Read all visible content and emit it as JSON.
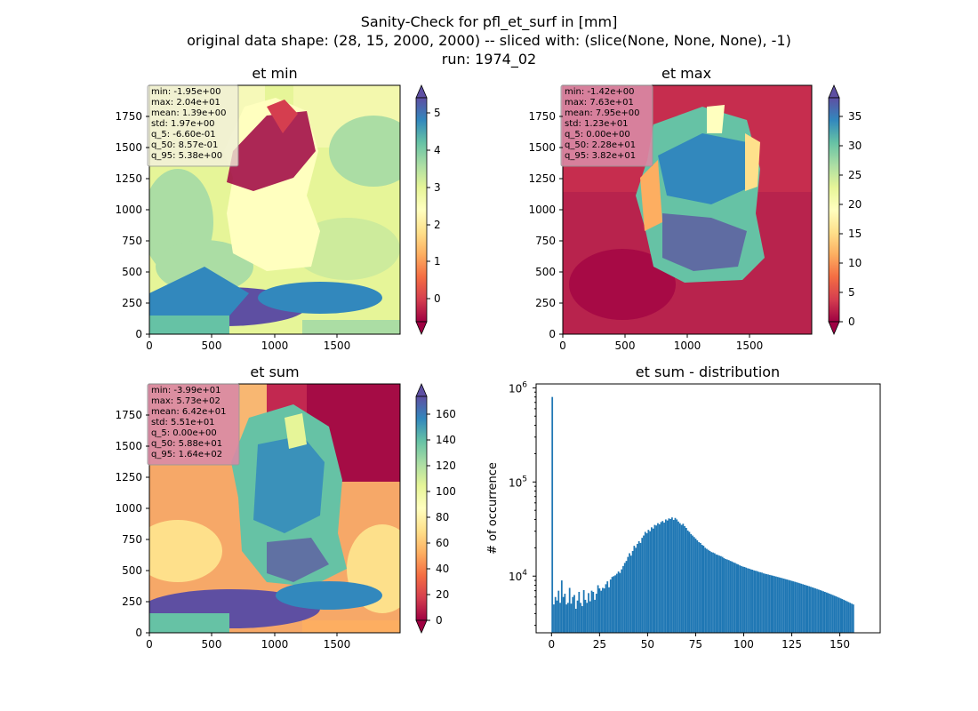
{
  "figure": {
    "title_line1": "Sanity-Check for pfl_et_surf in [mm]",
    "title_line2": "original data shape: (28, 15, 2000, 2000) -- sliced with: (slice(None, None, None), -1)",
    "title_line3": "run: 1974_02"
  },
  "colors": {
    "colormap": "Spectral",
    "spectral_stops": [
      "#9e0142",
      "#d53e4f",
      "#f46d43",
      "#fdae61",
      "#fee08b",
      "#ffffbf",
      "#e6f598",
      "#abdda4",
      "#66c2a5",
      "#3288bd",
      "#5e4fa2"
    ],
    "histogram_bar": "#1f77b4",
    "stats_box_bg": "#e8b4c4"
  },
  "chart_data": [
    {
      "type": "heatmap",
      "title": "et min",
      "xlabel": "",
      "ylabel": "",
      "xlim": [
        0,
        2000
      ],
      "ylim": [
        0,
        2000
      ],
      "xticks": [
        "0",
        "500",
        "1000",
        "1500"
      ],
      "yticks": [
        "0",
        "250",
        "500",
        "750",
        "1000",
        "1250",
        "1500",
        "1750"
      ],
      "colorbar": {
        "range": [
          -0.66,
          5.38
        ],
        "ticks": [
          "0",
          "1",
          "2",
          "3",
          "4",
          "5"
        ],
        "extend": "both"
      },
      "stats": [
        "min: -1.95e+00",
        "max: 2.04e+01",
        "mean: 1.39e+00",
        "std: 1.97e+00",
        "q_5: -6.60e-01",
        "q_50: 8.57e-01",
        "q_95: 5.38e+00"
      ],
      "stats_box_color": "#f0f0d8"
    },
    {
      "type": "heatmap",
      "title": "et max",
      "xlabel": "",
      "ylabel": "",
      "xlim": [
        0,
        2000
      ],
      "ylim": [
        0,
        2000
      ],
      "xticks": [
        "0",
        "500",
        "1000",
        "1500"
      ],
      "yticks": [
        "0",
        "250",
        "500",
        "750",
        "1000",
        "1250",
        "1500",
        "1750"
      ],
      "colorbar": {
        "range": [
          0,
          38.2
        ],
        "ticks": [
          "0",
          "5",
          "10",
          "15",
          "20",
          "25",
          "30",
          "35"
        ],
        "extend": "both"
      },
      "stats": [
        "min: -1.42e+00",
        "max: 7.63e+01",
        "mean: 7.95e+00",
        "std: 1.23e+01",
        "q_5: 0.00e+00",
        "q_50: 2.28e+01",
        "q_95: 3.82e+01"
      ],
      "stats_box_color": "#d98aa5"
    },
    {
      "type": "heatmap",
      "title": "et sum",
      "xlabel": "",
      "ylabel": "",
      "xlim": [
        0,
        2000
      ],
      "ylim": [
        0,
        2000
      ],
      "xticks": [
        "0",
        "500",
        "1000",
        "1500"
      ],
      "yticks": [
        "0",
        "250",
        "500",
        "750",
        "1000",
        "1250",
        "1500",
        "1750"
      ],
      "colorbar": {
        "range": [
          0,
          164
        ],
        "ticks": [
          "0",
          "20",
          "40",
          "60",
          "80",
          "100",
          "120",
          "140",
          "160"
        ],
        "extend": "both"
      },
      "stats": [
        "min: -3.99e+01",
        "max: 5.73e+02",
        "mean: 6.42e+01",
        "std: 5.51e+01",
        "q_5: 0.00e+00",
        "q_50: 5.88e+01",
        "q_95: 1.64e+02"
      ],
      "stats_box_color": "#d98aa5"
    },
    {
      "type": "bar",
      "title": "et sum - distribution",
      "xlabel": "",
      "ylabel": "# of occurrence",
      "xlim": [
        -8,
        171
      ],
      "yscale": "log",
      "ylim": [
        2500,
        1100000
      ],
      "xticks": [
        0,
        25,
        50,
        75,
        100,
        125,
        150
      ],
      "yticks": [
        {
          "value": 10000,
          "base": "10",
          "exp": "4"
        },
        {
          "value": 100000,
          "base": "10",
          "exp": "5"
        },
        {
          "value": 1000000,
          "base": "10",
          "exp": "6"
        }
      ],
      "bins": {
        "start": 0,
        "width": 0.82
      },
      "values": [
        800000,
        5000,
        6000,
        5500,
        7000,
        5200,
        9000,
        6000,
        6500,
        5000,
        5200,
        7500,
        5100,
        6000,
        6300,
        4500,
        5500,
        6800,
        5200,
        4800,
        7100,
        5600,
        5200,
        6600,
        5400,
        7000,
        6800,
        5600,
        6500,
        8000,
        7400,
        7000,
        7500,
        7400,
        8200,
        8800,
        7600,
        9200,
        9800,
        10000,
        10200,
        10600,
        11200,
        10800,
        11800,
        12800,
        13800,
        14500,
        16000,
        17500,
        16500,
        18500,
        21000,
        20000,
        22000,
        23500,
        22500,
        25500,
        27000,
        29500,
        28500,
        31000,
        30000,
        33000,
        32000,
        35000,
        34500,
        36500,
        35500,
        37500,
        38500,
        37000,
        40000,
        39000,
        41000,
        40500,
        42000,
        39500,
        41500,
        40000,
        38000,
        36500,
        35000,
        36000,
        34000,
        32500,
        30500,
        29500,
        28000,
        27000,
        26000,
        25000,
        24000,
        23000,
        22500,
        21500,
        21000,
        20000,
        19500,
        19000,
        18500,
        18000,
        17800,
        17500,
        17000,
        16800,
        16500,
        16300,
        16000,
        15500,
        15200,
        15000,
        14800,
        14500,
        14300,
        14000,
        13800,
        13500,
        13300,
        13000,
        12800,
        12600,
        12500,
        12300,
        12100,
        12000,
        11800,
        11700,
        11500,
        11400,
        11300,
        11100,
        11000,
        10900,
        10700,
        10600,
        10500,
        10400,
        10300,
        10200,
        10100,
        10000,
        9900,
        9800,
        9700,
        9600,
        9500,
        9400,
        9300,
        9200,
        9100,
        9000,
        8900,
        8800,
        8700,
        8600,
        8500,
        8400,
        8300,
        8200,
        8100,
        8000,
        7900,
        7800,
        7700,
        7600,
        7500,
        7400,
        7300,
        7200,
        7100,
        7000,
        6900,
        6800,
        6700,
        6600,
        6500,
        6400,
        6300,
        6200,
        6100,
        6000,
        5900,
        5800,
        5700,
        5600,
        5500,
        5400,
        5300,
        5200,
        5100,
        5000
      ]
    }
  ]
}
